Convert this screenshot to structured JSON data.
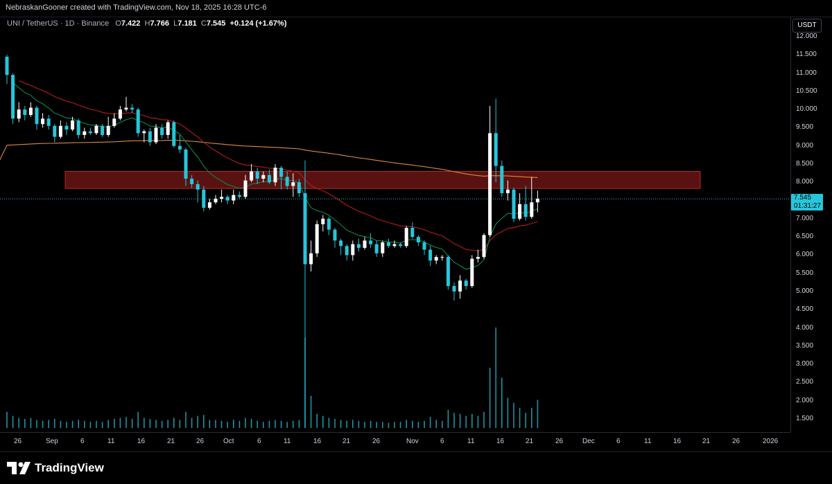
{
  "header": {
    "credit": "NebraskanGooner created with TradingView.com, Nov 18, 2025 16:28 UTC-6"
  },
  "legend": {
    "symbol": "UNI / TetherUS · 1D · Binance",
    "open_label": "O",
    "open": "7.422",
    "high_label": "H",
    "high": "7.766",
    "low_label": "L",
    "low": "7.181",
    "close_label": "C",
    "close": "7.545",
    "change": "+0.124 (+1.67%)"
  },
  "unit": "USDT",
  "price_tag": {
    "price": "7.545",
    "countdown": "01:31:27"
  },
  "footer": {
    "brand": "TradingView"
  },
  "colors": {
    "up": "#ffffff",
    "down": "#26c6da",
    "ema_fast": "#0b8a4b",
    "ema_mid": "#b71c1c",
    "ema_slow": "#e08a3c",
    "zone": "#8b1a1a",
    "volume": "#26c6da"
  },
  "chart_data": {
    "type": "candlestick",
    "y_ticks": [
      "12.000",
      "11.500",
      "11.000",
      "10.500",
      "10.000",
      "9.500",
      "9.000",
      "8.500",
      "8.000",
      "7.500",
      "7.000",
      "6.500",
      "6.000",
      "5.500",
      "5.000",
      "4.500",
      "4.000",
      "3.500",
      "3.000",
      "2.500",
      "2.000",
      "1.500"
    ],
    "y_range": [
      1.05,
      12.25
    ],
    "x_ticks": [
      "26",
      "Sep",
      "6",
      "11",
      "16",
      "21",
      "26",
      "Oct",
      "6",
      "11",
      "16",
      "21",
      "26",
      "Nov",
      "6",
      "11",
      "16",
      "21",
      "26",
      "Dec",
      "6",
      "11",
      "16",
      "21",
      "26",
      "2026"
    ],
    "resistance_zone": [
      7.83,
      8.3
    ],
    "last_price": 7.545,
    "candles": [
      [
        11.45,
        10.95,
        11.5,
        10.7
      ],
      [
        10.95,
        9.75,
        11.0,
        9.6
      ],
      [
        9.75,
        10.0,
        10.2,
        9.65
      ],
      [
        10.0,
        9.85,
        10.1,
        9.7
      ],
      [
        9.85,
        10.05,
        10.2,
        9.8
      ],
      [
        10.05,
        9.6,
        10.1,
        9.45
      ],
      [
        9.6,
        9.75,
        9.9,
        9.5
      ],
      [
        9.75,
        9.55,
        9.85,
        9.45
      ],
      [
        9.55,
        9.25,
        9.6,
        9.1
      ],
      [
        9.25,
        9.55,
        9.7,
        9.2
      ],
      [
        9.55,
        9.45,
        9.65,
        9.3
      ],
      [
        9.45,
        9.7,
        9.8,
        9.4
      ],
      [
        9.7,
        9.3,
        9.75,
        9.2
      ],
      [
        9.3,
        9.4,
        9.5,
        9.2
      ],
      [
        9.4,
        9.35,
        9.5,
        9.3
      ],
      [
        9.35,
        9.55,
        9.6,
        9.3
      ],
      [
        9.55,
        9.3,
        9.6,
        9.25
      ],
      [
        9.3,
        9.55,
        9.8,
        9.25
      ],
      [
        9.55,
        9.75,
        9.9,
        9.5
      ],
      [
        9.75,
        10.0,
        10.1,
        9.7
      ],
      [
        10.0,
        10.05,
        10.35,
        9.95
      ],
      [
        10.05,
        10.0,
        10.15,
        9.9
      ],
      [
        10.0,
        9.35,
        10.05,
        9.25
      ],
      [
        9.35,
        9.4,
        9.45,
        9.1
      ],
      [
        9.4,
        9.1,
        9.5,
        9.0
      ],
      [
        9.1,
        9.5,
        9.6,
        9.05
      ],
      [
        9.5,
        9.3,
        9.6,
        9.2
      ],
      [
        9.3,
        9.65,
        9.7,
        9.2
      ],
      [
        9.65,
        9.0,
        9.7,
        8.95
      ],
      [
        9.0,
        8.9,
        9.3,
        8.8
      ],
      [
        8.9,
        8.1,
        8.95,
        7.9
      ],
      [
        8.1,
        7.95,
        8.2,
        7.85
      ],
      [
        7.95,
        7.8,
        8.05,
        7.45
      ],
      [
        7.8,
        7.3,
        7.9,
        7.2
      ],
      [
        7.3,
        7.45,
        7.55,
        7.25
      ],
      [
        7.45,
        7.55,
        7.65,
        7.4
      ],
      [
        7.55,
        7.6,
        7.8,
        7.45
      ],
      [
        7.6,
        7.5,
        7.65,
        7.4
      ],
      [
        7.5,
        7.65,
        7.8,
        7.4
      ],
      [
        7.65,
        7.6,
        7.75,
        7.55
      ],
      [
        7.6,
        8.05,
        8.2,
        7.55
      ],
      [
        8.05,
        8.3,
        8.5,
        8.0
      ],
      [
        8.3,
        8.1,
        8.4,
        7.95
      ],
      [
        8.1,
        8.2,
        8.3,
        8.0
      ],
      [
        8.2,
        8.0,
        8.35,
        7.95
      ],
      [
        8.0,
        8.4,
        8.5,
        7.9
      ],
      [
        8.4,
        8.15,
        8.45,
        7.8
      ],
      [
        8.15,
        7.9,
        8.3,
        7.8
      ],
      [
        7.9,
        8.0,
        8.25,
        7.6
      ],
      [
        8.0,
        7.7,
        8.1,
        7.6
      ],
      [
        7.7,
        5.75,
        8.6,
        1.25
      ],
      [
        5.75,
        6.05,
        6.4,
        5.55
      ],
      [
        6.05,
        6.85,
        6.95,
        5.95
      ],
      [
        6.85,
        7.0,
        7.1,
        6.65
      ],
      [
        7.0,
        6.7,
        7.05,
        6.55
      ],
      [
        6.7,
        6.4,
        6.75,
        6.2
      ],
      [
        6.4,
        6.25,
        6.45,
        6.0
      ],
      [
        6.25,
        6.0,
        6.3,
        5.85
      ],
      [
        6.0,
        6.3,
        6.4,
        5.85
      ],
      [
        6.3,
        6.2,
        6.45,
        6.1
      ],
      [
        6.2,
        6.4,
        6.5,
        6.15
      ],
      [
        6.4,
        6.3,
        6.6,
        6.2
      ],
      [
        6.3,
        6.05,
        6.4,
        5.95
      ],
      [
        6.05,
        6.35,
        6.4,
        5.95
      ],
      [
        6.35,
        6.25,
        6.45,
        6.2
      ],
      [
        6.25,
        6.3,
        6.4,
        6.2
      ],
      [
        6.3,
        6.25,
        6.35,
        6.2
      ],
      [
        6.25,
        6.75,
        6.8,
        6.2
      ],
      [
        6.75,
        6.5,
        6.9,
        6.45
      ],
      [
        6.5,
        6.35,
        6.55,
        6.25
      ],
      [
        6.35,
        6.15,
        6.4,
        6.0
      ],
      [
        6.15,
        5.85,
        6.25,
        5.7
      ],
      [
        5.85,
        5.95,
        6.0,
        5.75
      ],
      [
        5.95,
        5.95,
        6.0,
        5.85
      ],
      [
        5.95,
        5.15,
        6.0,
        5.05
      ],
      [
        5.15,
        5.0,
        5.25,
        4.75
      ],
      [
        5.0,
        5.3,
        5.45,
        4.8
      ],
      [
        5.3,
        5.15,
        5.35,
        5.05
      ],
      [
        5.15,
        5.9,
        6.0,
        5.1
      ],
      [
        5.9,
        5.95,
        6.15,
        5.8
      ],
      [
        5.95,
        6.55,
        6.6,
        5.9
      ],
      [
        6.55,
        9.35,
        10.1,
        6.5
      ],
      [
        9.35,
        8.45,
        10.3,
        8.0
      ],
      [
        8.45,
        7.7,
        8.6,
        7.6
      ],
      [
        7.7,
        7.8,
        8.05,
        7.5
      ],
      [
        7.8,
        7.0,
        7.85,
        6.9
      ],
      [
        7.0,
        7.4,
        7.7,
        6.95
      ],
      [
        7.4,
        7.05,
        7.9,
        6.95
      ],
      [
        7.05,
        7.45,
        8.15,
        7.0
      ],
      [
        7.45,
        7.55,
        7.77,
        7.18
      ]
    ],
    "volume": [
      0.16,
      0.12,
      0.1,
      0.09,
      0.1,
      0.08,
      0.07,
      0.08,
      0.09,
      0.07,
      0.06,
      0.07,
      0.08,
      0.07,
      0.06,
      0.07,
      0.06,
      0.08,
      0.09,
      0.1,
      0.11,
      0.09,
      0.16,
      0.1,
      0.09,
      0.08,
      0.07,
      0.08,
      0.1,
      0.08,
      0.16,
      0.1,
      0.12,
      0.13,
      0.08,
      0.08,
      0.07,
      0.06,
      0.08,
      0.07,
      0.1,
      0.09,
      0.07,
      0.06,
      0.07,
      0.08,
      0.07,
      0.06,
      0.07,
      0.08,
      0.9,
      0.32,
      0.14,
      0.12,
      0.1,
      0.09,
      0.08,
      0.07,
      0.08,
      0.07,
      0.06,
      0.07,
      0.06,
      0.06,
      0.05,
      0.06,
      0.06,
      0.08,
      0.07,
      0.06,
      0.07,
      0.11,
      0.08,
      0.07,
      0.18,
      0.15,
      0.14,
      0.12,
      0.14,
      0.12,
      0.16,
      0.6,
      1.0,
      0.5,
      0.3,
      0.25,
      0.2,
      0.15,
      0.2,
      0.28
    ]
  }
}
